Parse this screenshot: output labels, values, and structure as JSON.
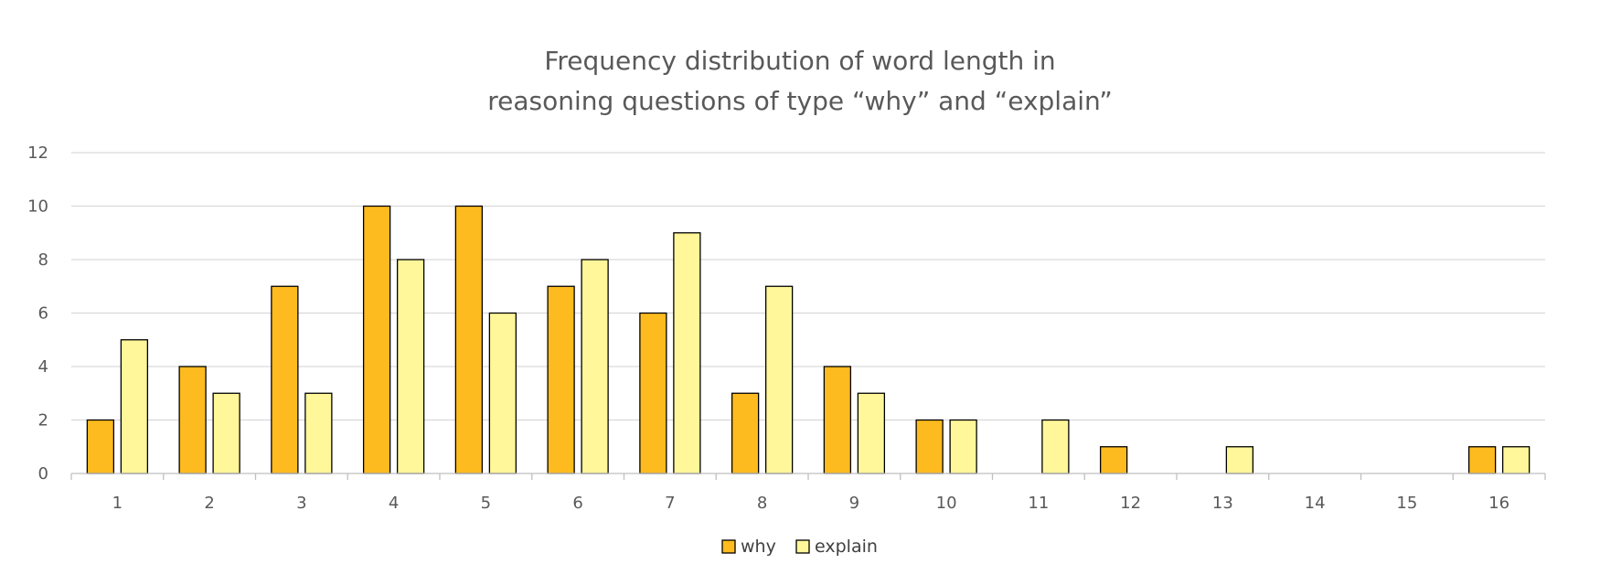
{
  "chart_data": {
    "type": "bar",
    "title_lines": [
      "Frequency distribution of word length in",
      "reasoning questions of type “why” and “explain”"
    ],
    "categories": [
      "1",
      "2",
      "3",
      "4",
      "5",
      "6",
      "7",
      "8",
      "9",
      "10",
      "11",
      "12",
      "13",
      "14",
      "15",
      "16"
    ],
    "series": [
      {
        "name": "why",
        "color": "#FDBB1F",
        "values": [
          2,
          4,
          7,
          10,
          10,
          7,
          6,
          3,
          4,
          2,
          0,
          1,
          0,
          0,
          0,
          1
        ]
      },
      {
        "name": "explain",
        "color": "#FFF799",
        "values": [
          5,
          3,
          3,
          8,
          6,
          8,
          9,
          7,
          3,
          2,
          2,
          0,
          1,
          0,
          0,
          1
        ]
      }
    ],
    "ylim": [
      0,
      12
    ],
    "yticks": [
      0,
      2,
      4,
      6,
      8,
      10,
      12
    ],
    "grid": true,
    "legend_position": "bottom"
  }
}
